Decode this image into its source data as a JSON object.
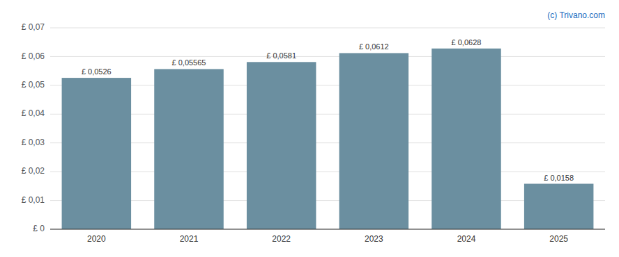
{
  "chart_data": {
    "type": "bar",
    "categories": [
      "2020",
      "2021",
      "2022",
      "2023",
      "2024",
      "2025"
    ],
    "values": [
      0.0526,
      0.05565,
      0.0581,
      0.0612,
      0.0628,
      0.0158
    ],
    "value_labels": [
      "£ 0,0526",
      "£ 0,05565",
      "£ 0,0581",
      "£ 0,0612",
      "£ 0,0628",
      "£ 0,0158"
    ],
    "data_labels": true,
    "color": "#6b8fa0",
    "ylim": [
      0,
      0.07
    ],
    "yticks": [
      {
        "value": 0,
        "label": "£ 0"
      },
      {
        "value": 0.01,
        "label": "£ 0,01"
      },
      {
        "value": 0.02,
        "label": "£ 0,02"
      },
      {
        "value": 0.03,
        "label": "£ 0,03"
      },
      {
        "value": 0.04,
        "label": "£ 0,04"
      },
      {
        "value": 0.05,
        "label": "£ 0,05"
      },
      {
        "value": 0.06,
        "label": "£ 0,06"
      },
      {
        "value": 0.07,
        "label": "£ 0,07"
      }
    ],
    "grid": true,
    "annotations": [
      "(c) Trivano.com"
    ]
  }
}
